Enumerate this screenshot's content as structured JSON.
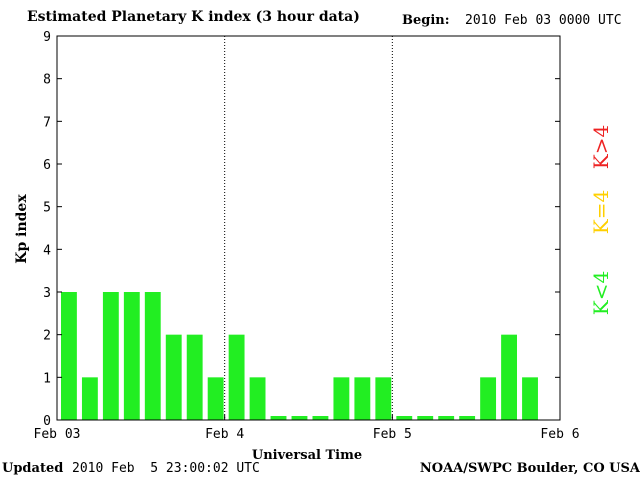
{
  "header": {
    "title": "Estimated Planetary K index (3 hour data)",
    "begin_label": "Begin:",
    "begin_value": "2010 Feb 03 0000 UTC"
  },
  "footer": {
    "updated_label": "Updated",
    "updated_value": "2010 Feb  5 23:00:02 UTC",
    "credit": "NOAA/SWPC Boulder, CO USA"
  },
  "legend": [
    {
      "label": "K<4",
      "color": "#22ee22"
    },
    {
      "label": "K=4",
      "color": "#ffd000"
    },
    {
      "label": "K>4",
      "color": "#ee2222"
    }
  ],
  "chart_data": {
    "type": "bar",
    "title": "Estimated Planetary K index (3 hour data)",
    "xlabel": "Universal Time",
    "ylabel": "Kp index",
    "ylim": [
      0,
      9
    ],
    "yticks": [
      0,
      1,
      2,
      3,
      4,
      5,
      6,
      7,
      8,
      9
    ],
    "xlim": [
      "2010-02-03 00:00",
      "2010-02-06 00:00"
    ],
    "xtick_labels": [
      "Feb 03",
      "Feb 4",
      "Feb 5",
      "Feb 6"
    ],
    "day_separators": [
      "2010-02-04 00:00",
      "2010-02-05 00:00"
    ],
    "bar_color": "#22ee22",
    "grid": false,
    "legend_position": "right",
    "categories": [
      "2010-02-03 00:00",
      "2010-02-03 03:00",
      "2010-02-03 06:00",
      "2010-02-03 09:00",
      "2010-02-03 12:00",
      "2010-02-03 15:00",
      "2010-02-03 18:00",
      "2010-02-03 21:00",
      "2010-02-04 00:00",
      "2010-02-04 03:00",
      "2010-02-04 06:00",
      "2010-02-04 09:00",
      "2010-02-04 12:00",
      "2010-02-04 15:00",
      "2010-02-04 18:00",
      "2010-02-04 21:00",
      "2010-02-05 00:00",
      "2010-02-05 03:00",
      "2010-02-05 06:00",
      "2010-02-05 09:00",
      "2010-02-05 12:00",
      "2010-02-05 15:00",
      "2010-02-05 18:00"
    ],
    "values": [
      3,
      1,
      3,
      3,
      3,
      2,
      2,
      1,
      2,
      1,
      0,
      0,
      0,
      1,
      1,
      1,
      0,
      0,
      0,
      0,
      1,
      2,
      1
    ]
  }
}
